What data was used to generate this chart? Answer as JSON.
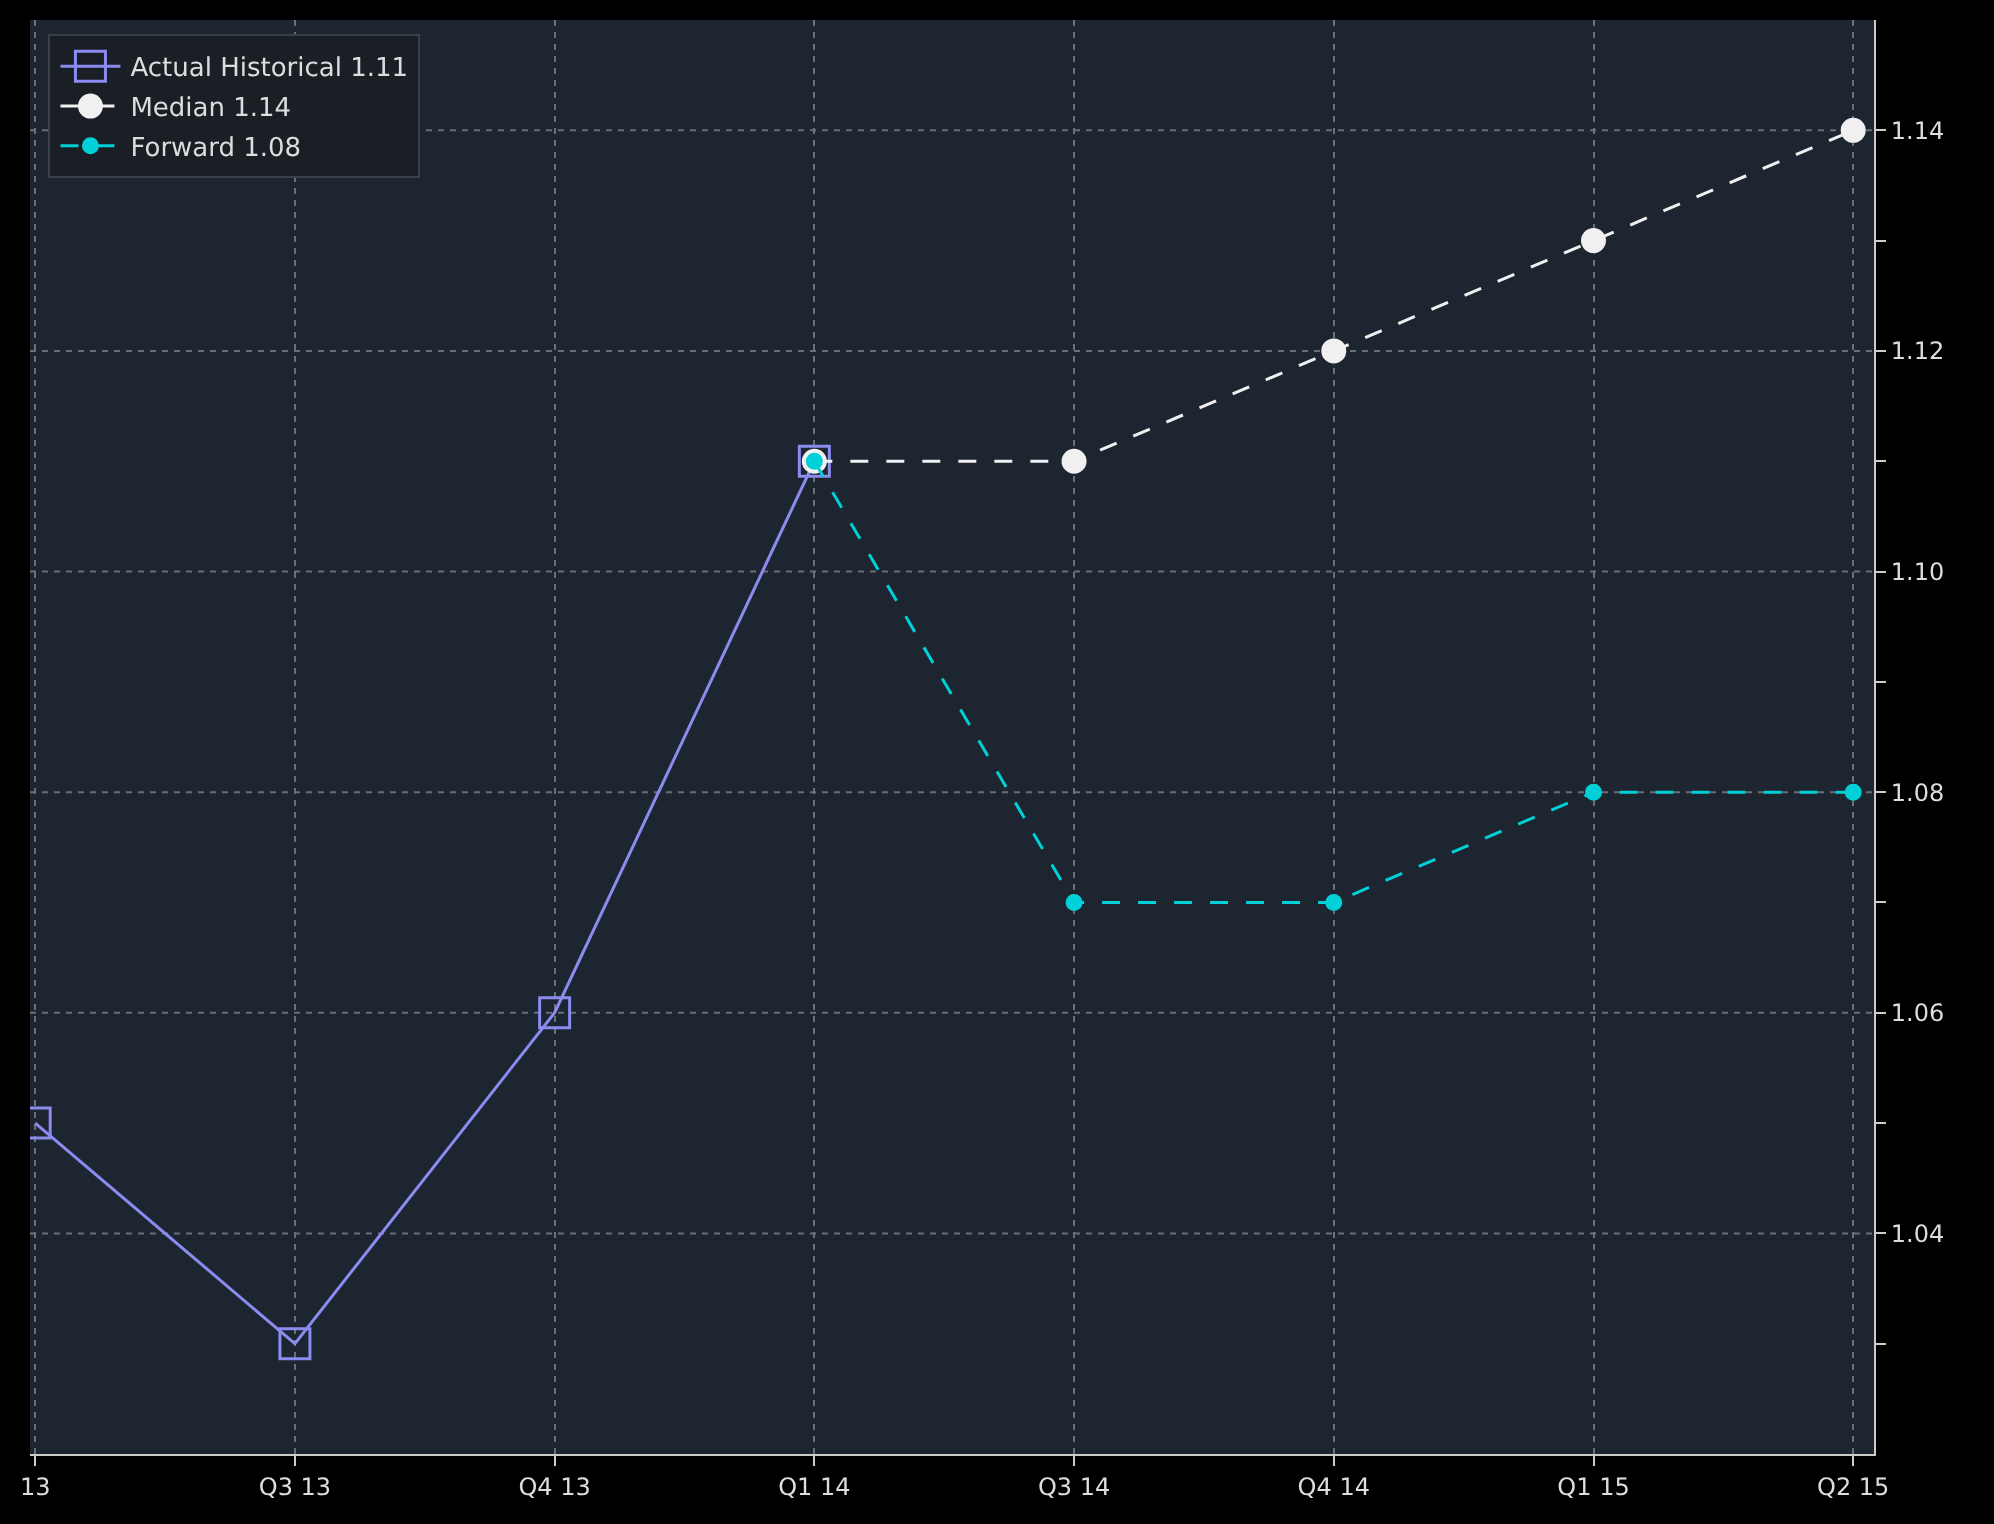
{
  "chart_data": {
    "type": "line",
    "categories": [
      "13",
      "Q3 13",
      "Q4 13",
      "Q1 14",
      "Q3 14",
      "Q4 14",
      "Q1 15",
      "Q2 15"
    ],
    "series": [
      {
        "name": "Actual Historical 1.11",
        "color": "#8c8cf0",
        "values": [
          1.05,
          1.03,
          1.06,
          1.11,
          null,
          null,
          null,
          null
        ],
        "marker": "square",
        "line_style": "solid"
      },
      {
        "name": "Median 1.14",
        "color": "#f0f0f0",
        "values": [
          null,
          null,
          null,
          1.11,
          1.11,
          1.12,
          1.13,
          1.14
        ],
        "marker": "circle",
        "line_style": "dashed"
      },
      {
        "name": "Forward 1.08",
        "color": "#00d0d8",
        "values": [
          null,
          null,
          null,
          1.11,
          1.07,
          1.07,
          1.08,
          1.08
        ],
        "marker": "circle",
        "line_style": "dashed"
      }
    ],
    "ylim": [
      1.02,
      1.15
    ],
    "yticks": [
      {
        "value": 1.03,
        "label": null
      },
      1.04,
      {
        "value": 1.05,
        "label": null
      },
      1.06,
      {
        "value": 1.07,
        "label": null
      },
      1.08,
      {
        "value": 1.09,
        "label": null
      },
      {
        "value": 1.1,
        "label": "1.10"
      },
      {
        "value": 1.11,
        "label": null
      },
      1.12,
      {
        "value": 1.13,
        "label": null
      },
      1.14
    ],
    "grid": true,
    "legend": "top left"
  }
}
